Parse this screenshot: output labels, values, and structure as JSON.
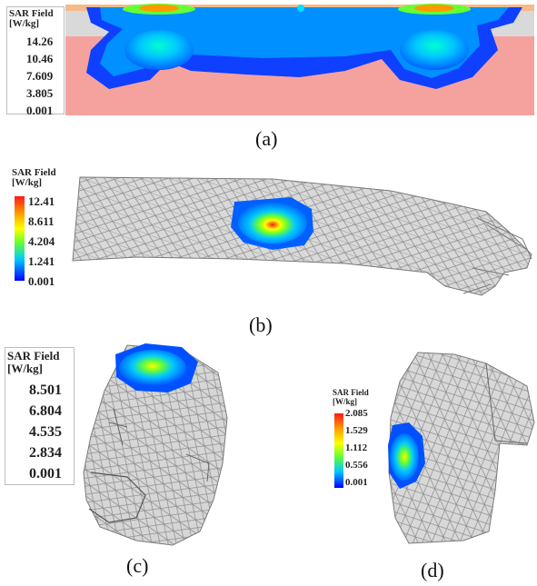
{
  "panels": [
    {
      "id": "a",
      "caption": "(a)",
      "legend": {
        "title": "SAR Field",
        "unit": "[W/kg]",
        "values": [
          "14.26",
          "10.46",
          "7.609",
          "3.805",
          "0.001"
        ]
      }
    },
    {
      "id": "b",
      "caption": "(b)",
      "legend": {
        "title": "SAR Field",
        "unit": "[W/kg]",
        "values": [
          "12.41",
          "8.611",
          "4.204",
          "1.241",
          "0.001"
        ]
      }
    },
    {
      "id": "c",
      "caption": "(c)",
      "legend": {
        "title": "SAR Field",
        "unit": "[W/kg]",
        "values": [
          "8.501",
          "6.804",
          "4.535",
          "2.834",
          "0.001"
        ]
      }
    },
    {
      "id": "d",
      "caption": "(d)",
      "legend": {
        "title": "SAR Field",
        "unit": "[W/kg]",
        "values": [
          "2.085",
          "1.529",
          "1.112",
          "0.556",
          "0.001"
        ]
      }
    }
  ],
  "colors": {
    "scale": [
      "#ff1a1a",
      "#ff9900",
      "#ffff00",
      "#66ff33",
      "#00e0a0",
      "#00c8ff",
      "#0080ff",
      "#0000ff"
    ],
    "tissue": "#f5a29e",
    "mesh": "#9a9a9a",
    "mesh_fill": "#dcdcdc"
  }
}
